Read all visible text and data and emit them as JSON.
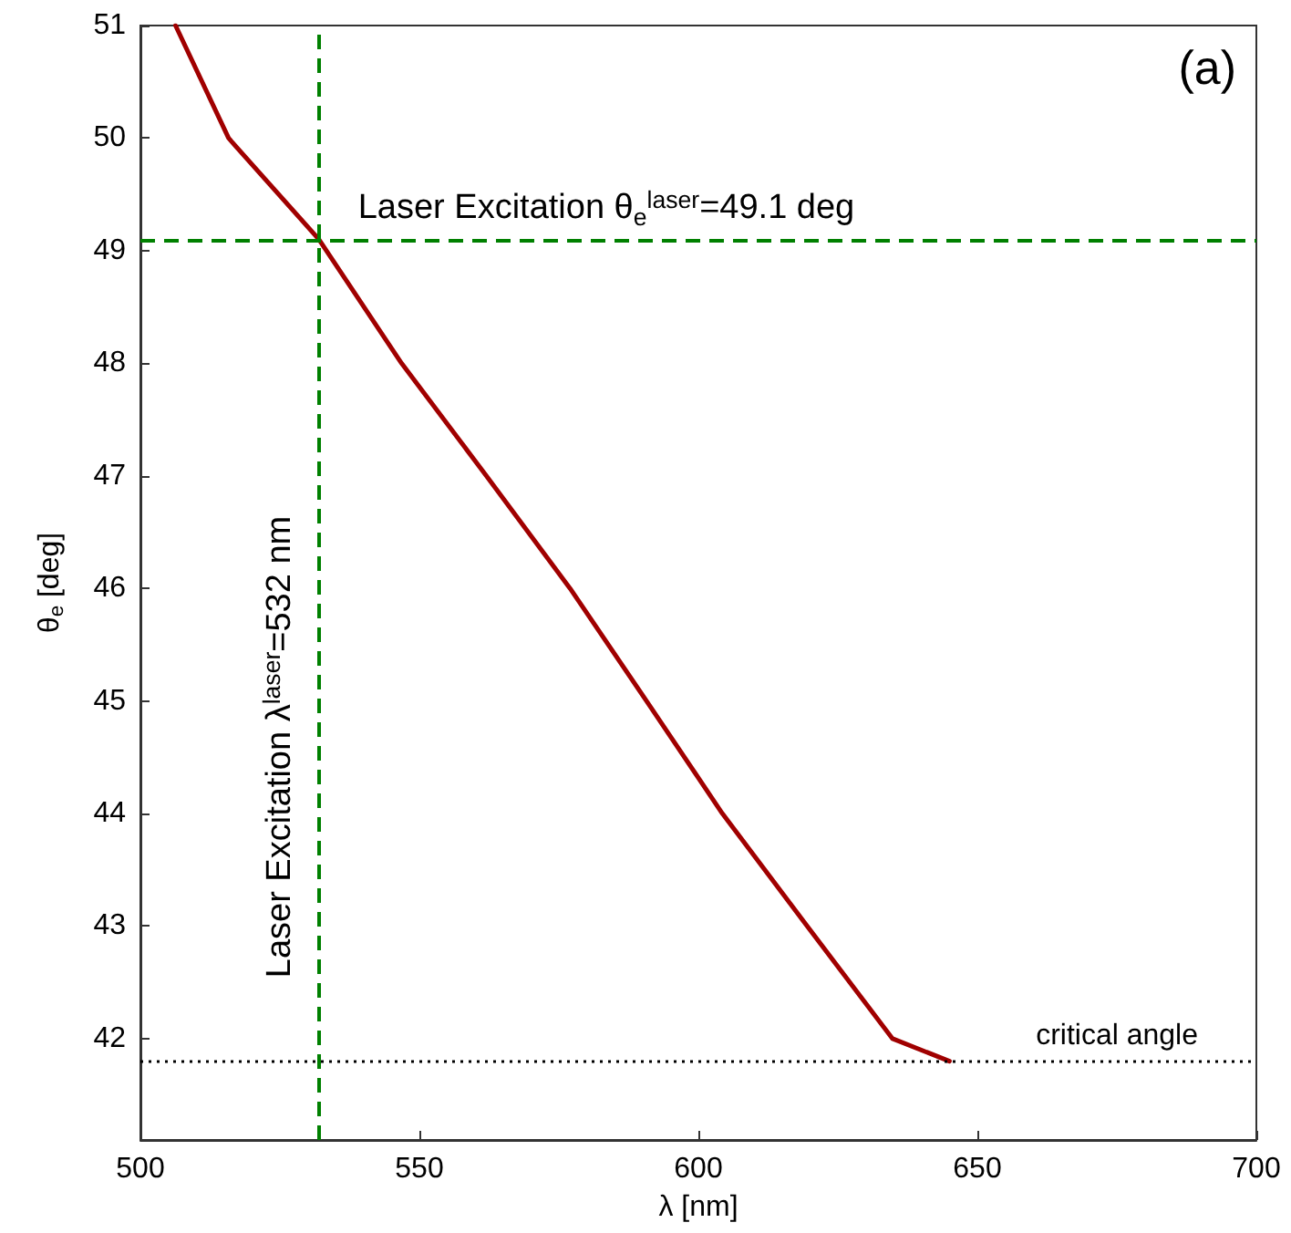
{
  "chart_data": {
    "type": "line",
    "xlabel": "λ [nm]",
    "ylabel": "θ$_{e}$ [deg]",
    "annotations": [
      "(a)"
    ],
    "series": [
      {
        "color": "#a00000",
        "x": [
          506.3,
          515.8,
          532,
          546.8,
          562,
          577,
          590.7,
          604.3,
          619.5,
          634.8,
          645
        ],
        "values": [
          51,
          50,
          49.1,
          48,
          47,
          46,
          45,
          44,
          43,
          42,
          41.8
        ]
      }
    ],
    "xlim": [
      500,
      700
    ],
    "xticks": [
      500,
      550,
      600,
      650,
      700
    ],
    "ylim": [
      41.1,
      51
    ],
    "yticks": [
      42,
      43,
      44,
      45,
      46,
      47,
      48,
      49,
      50,
      51
    ],
    "grid": false,
    "marker": "none",
    "line_style": "solid",
    "ref_lines": [
      {
        "axis": "x",
        "value": 532,
        "label": "Laser Excitation λ$^{laser}$=532 nm",
        "color": "#008000",
        "line_style": "dashed"
      },
      {
        "axis": "y",
        "value": 49.1,
        "label": "Laser Excitation θ$_{e}$$^{laser}$=49.1 deg",
        "color": "#008000",
        "line_style": "dashed"
      },
      {
        "axis": "y",
        "value": 41.8,
        "label": "critical angle",
        "color": "#000000",
        "line_style": "dotted"
      }
    ]
  }
}
